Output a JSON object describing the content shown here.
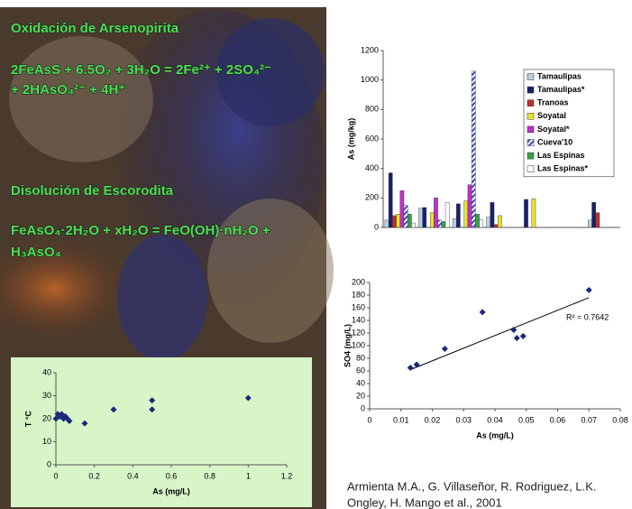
{
  "slide": {
    "heading_1": "Oxidación de Arsenopirita",
    "equation_1": [
      "2FeAsS + 6.5O₂ + 3H₂O = 2Fe²⁺ + 2SO₄²⁻",
      "+ 2HAsO₄²⁻ + 4H⁺"
    ],
    "heading_2": "Disolución de Escorodita",
    "equation_2": [
      "FeAsO₄·2H₂O + xH₂O = FeO(OH)·nH₂O +",
      "H₃AsO₄"
    ],
    "citation": [
      "Armienta M.A., G. Villaseñor, R. Rodriguez, L.K.",
      "Ongley, H. Mango et al., 2001"
    ]
  },
  "chart_data": [
    {
      "type": "bar",
      "y_label": "As (mg/kg)",
      "categories": [
        null,
        null,
        null,
        null,
        null,
        null,
        null
      ],
      "ylim": [
        0,
        1200
      ],
      "yticks": [
        0,
        200,
        400,
        600,
        800,
        1000,
        1200
      ],
      "series": [
        {
          "name": "Tamaulipas",
          "color": "#b8cfe0",
          "values": [
            50,
            130,
            60,
            70,
            0,
            0,
            50
          ]
        },
        {
          "name": "Tamaulipas*",
          "color": "#1a1f6e",
          "values": [
            370,
            135,
            160,
            170,
            190,
            0,
            170
          ]
        },
        {
          "name": "Tranoas",
          "color": "#c0302a",
          "values": [
            80,
            0,
            0,
            20,
            0,
            0,
            100
          ]
        },
        {
          "name": "Soyatal",
          "color": "#e8e030",
          "values": [
            90,
            100,
            180,
            80,
            195,
            0,
            0
          ]
        },
        {
          "name": "Soyatal*",
          "color": "#c030c8",
          "values": [
            250,
            200,
            290,
            0,
            0,
            0,
            0
          ]
        },
        {
          "name": "Cueva'10",
          "color": "#3a4cc0",
          "values": [
            150,
            50,
            1060,
            0,
            0,
            0,
            0
          ]
        },
        {
          "name": "Las Espinas",
          "color": "#3aa048",
          "values": [
            90,
            40,
            90,
            0,
            0,
            0,
            0
          ]
        },
        {
          "name": "Las Espinas*",
          "color": "#ffffff",
          "values": [
            30,
            170,
            50,
            0,
            0,
            0,
            0
          ]
        }
      ]
    },
    {
      "type": "scatter",
      "x_label": "As (mg/L)",
      "y_label": "T °C",
      "color": "#1a2a7a",
      "x": [
        0,
        0.01,
        0.02,
        0.03,
        0.04,
        0.05,
        0.06,
        0.07,
        0.15,
        0.3,
        0.5,
        0.5,
        1
      ],
      "values": [
        20,
        22,
        21,
        22,
        20,
        21,
        20,
        19,
        18,
        24,
        24,
        28,
        29
      ],
      "xlim": [
        0,
        1.2
      ],
      "xticks": [
        0,
        0.2,
        0.4,
        0.6,
        0.8,
        1,
        1.2
      ],
      "ylim": [
        0,
        40
      ],
      "yticks": [
        0,
        10,
        20,
        30,
        40
      ]
    },
    {
      "type": "scatter",
      "x_label": "As (mg/L)",
      "y_label": "SO4 (mg/L)",
      "color": "#1a2a7a",
      "x": [
        0.013,
        0.015,
        0.024,
        0.036,
        0.046,
        0.047,
        0.049,
        0.07
      ],
      "values": [
        65,
        70,
        95,
        153,
        125,
        112,
        115,
        188
      ],
      "trendline": {
        "x": [
          0.013,
          0.07
        ],
        "y": [
          62,
          176
        ]
      },
      "annotation": "R² = 0.7642",
      "xlim": [
        0,
        0.08
      ],
      "xticks": [
        0,
        0.01,
        0.02,
        0.03,
        0.04,
        0.05,
        0.06,
        0.07,
        0.08
      ],
      "ylim": [
        0,
        200
      ],
      "yticks": [
        0,
        20,
        40,
        60,
        80,
        100,
        120,
        140,
        160,
        180,
        200
      ],
      "grid": false
    }
  ]
}
